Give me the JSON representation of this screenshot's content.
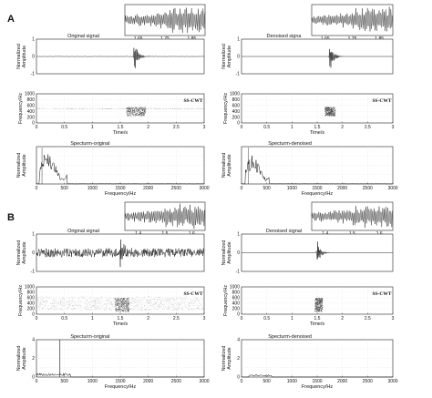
{
  "figure": {
    "panels": [
      {
        "label": "A",
        "original": {
          "signal_title": "Original signal",
          "ss_label": "SS-CWT",
          "spectrum_title": "Specturm-original",
          "inset_ticks": [
            "1.65",
            "1.75",
            "1.85"
          ]
        },
        "denoised": {
          "signal_title": "Denoised signa",
          "ss_label": "SS-CWT",
          "spectrum_title": "Specturm-denoised",
          "inset_ticks": [
            "1.65",
            "1.75",
            "1.85"
          ]
        }
      },
      {
        "label": "B",
        "original": {
          "signal_title": "Original signal",
          "ss_label": "SS-CWT",
          "spectrum_title": "Specturm-original",
          "inset_ticks": [
            "1.4",
            "1.5",
            "1.6"
          ]
        },
        "denoised": {
          "signal_title": "Denoised signal",
          "ss_label": "SS-CWT",
          "spectrum_title": "Specturm-denoised",
          "inset_ticks": [
            "1.4",
            "1.5",
            "1.6"
          ]
        }
      }
    ],
    "labels": {
      "amp": [
        "Normalized",
        "Amplitude"
      ],
      "freq": "Frequency/Hz",
      "time": "Time/s"
    },
    "ticks": {
      "signal_y": [
        "1",
        "0",
        "-1"
      ],
      "tf_y": [
        "1000",
        "800",
        "600",
        "400",
        "200",
        "0"
      ],
      "time_x": [
        "0",
        "0.5",
        "1",
        "1.5",
        "2",
        "2.5",
        "3"
      ],
      "spec_y": [
        "4",
        "2",
        "0"
      ],
      "spec_x": [
        "0",
        "500",
        "1000",
        "1500",
        "2000",
        "2500",
        "3000"
      ]
    },
    "colors": {
      "trace": "#111111",
      "grid": "#d9d9d9",
      "tf_mark": "#333333"
    }
  },
  "chart_data": [
    {
      "type": "line",
      "id": "A-original-signal",
      "title": "Original signal",
      "xlim": [
        0,
        3
      ],
      "ylim": [
        -1,
        1
      ],
      "ylabel": "Normalized Amplitude",
      "burst_center_s": 1.75,
      "burst_amplitude": 1.0,
      "noise_amplitude": 0.02
    },
    {
      "type": "line",
      "id": "A-denoised-signal",
      "title": "Denoised signa",
      "xlim": [
        0,
        3
      ],
      "ylim": [
        -1,
        1
      ],
      "ylabel": "Normalized Amplitude",
      "burst_center_s": 1.75,
      "burst_amplitude": 1.0,
      "noise_amplitude": 0.0
    },
    {
      "type": "heatmap",
      "id": "A-original-tf",
      "label": "SS-CWT",
      "xlim": [
        0,
        3
      ],
      "ylim": [
        0,
        1000
      ],
      "xlabel": "Time/s",
      "ylabel": "Frequency/Hz",
      "energy_time_range": [
        1.6,
        1.95
      ],
      "energy_freq_range": [
        250,
        550
      ],
      "background_band_hz": 500
    },
    {
      "type": "heatmap",
      "id": "A-denoised-tf",
      "label": "SS-CWT",
      "xlim": [
        0,
        3
      ],
      "ylim": [
        0,
        1000
      ],
      "xlabel": "Time/s",
      "ylabel": "Frequency/Hz",
      "energy_time_range": [
        1.65,
        1.85
      ],
      "energy_freq_range": [
        250,
        550
      ]
    },
    {
      "type": "line",
      "id": "A-original-spectrum",
      "title": "Specturm-original",
      "xlim": [
        0,
        3000
      ],
      "ylabel": "Normalized Amplitude",
      "xlabel": "Frequency/Hz",
      "peak_range_hz": [
        50,
        550
      ],
      "peak_level": 0.9
    },
    {
      "type": "line",
      "id": "A-denoised-spectrum",
      "title": "Specturm-denoised",
      "xlim": [
        0,
        3000
      ],
      "ylabel": "Normalized Amplitude",
      "xlabel": "Frequency/Hz",
      "peak_range_hz": [
        80,
        550
      ],
      "peak_level": 0.8
    },
    {
      "type": "line",
      "id": "B-original-signal",
      "title": "Original signal",
      "xlim": [
        0,
        3
      ],
      "ylim": [
        -1,
        1
      ],
      "ylabel": "Normalized Amplitude",
      "burst_center_s": 1.5,
      "burst_amplitude": 0.9,
      "noise_amplitude": 0.25
    },
    {
      "type": "line",
      "id": "B-denoised-signal",
      "title": "Denoised signal",
      "xlim": [
        0,
        3
      ],
      "ylim": [
        -1,
        1
      ],
      "ylabel": "Normalized Amplitude",
      "burst_center_s": 1.5,
      "burst_amplitude": 0.7,
      "noise_amplitude": 0.0
    },
    {
      "type": "heatmap",
      "id": "B-original-tf",
      "label": "SS-CWT",
      "xlim": [
        0,
        3
      ],
      "ylim": [
        0,
        1000
      ],
      "xlabel": "Time/s",
      "ylabel": "Frequency/Hz",
      "energy_time_range": [
        1.4,
        1.65
      ],
      "energy_freq_range": [
        100,
        600
      ],
      "background_band_hz": [
        150,
        650
      ]
    },
    {
      "type": "heatmap",
      "id": "B-denoised-tf",
      "label": "SS-CWT",
      "xlim": [
        0,
        3
      ],
      "ylim": [
        0,
        1000
      ],
      "xlabel": "Time/s",
      "ylabel": "Frequency/Hz",
      "energy_time_range": [
        1.45,
        1.6
      ],
      "energy_freq_range": [
        100,
        600
      ]
    },
    {
      "type": "line",
      "id": "B-original-spectrum",
      "title": "Specturm-original",
      "xlim": [
        0,
        3000
      ],
      "ylim": [
        0,
        4
      ],
      "ylabel": "Normalized Amplitude",
      "xlabel": "Frequency/Hz",
      "spike_hz": 420,
      "spike_value": 4,
      "floor_range_hz": [
        0,
        600
      ],
      "floor_value": 0.4
    },
    {
      "type": "line",
      "id": "B-denoised-spectrum",
      "title": "Specturm-denoised",
      "xlim": [
        0,
        3000
      ],
      "ylim": [
        0,
        4
      ],
      "ylabel": "Normalized Amplitude",
      "xlabel": "Frequency/Hz",
      "floor_range_hz": [
        150,
        600
      ],
      "floor_value": 0.25
    }
  ]
}
